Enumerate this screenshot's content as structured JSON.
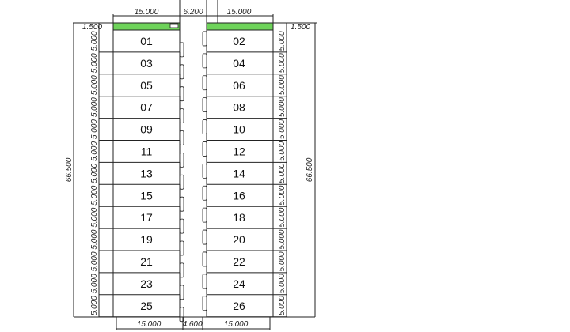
{
  "plan": {
    "top_dims": {
      "left": "15.000",
      "road": "6.200",
      "right": "15.000"
    },
    "bottom_dims": {
      "left": "15.000",
      "road": "4.600",
      "right": "15.000"
    },
    "setback_left": "1.500",
    "setback_right": "1.500",
    "total_length_left": "66.500",
    "total_length_right": "66.500",
    "lot_depth": "5.000",
    "green_color": "#6ed35a",
    "lots_left": [
      "01",
      "03",
      "05",
      "07",
      "09",
      "11",
      "13",
      "15",
      "17",
      "19",
      "21",
      "23",
      "25"
    ],
    "lots_right": [
      "02",
      "04",
      "06",
      "08",
      "10",
      "12",
      "14",
      "16",
      "18",
      "20",
      "22",
      "24",
      "26"
    ]
  }
}
